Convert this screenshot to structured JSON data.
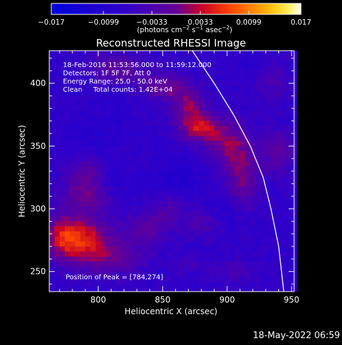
{
  "chart_data": {
    "type": "heatmap",
    "title": "Reconstructed RHESSI Image",
    "xlabel": "Heliocentric X (arcsec)",
    "ylabel": "Heliocentric Y (arcsec)",
    "xlim": [
      762,
      952
    ],
    "ylim": [
      234,
      426
    ],
    "xticks": [
      800,
      850,
      900,
      950
    ],
    "yticks": [
      250,
      300,
      350,
      400
    ],
    "colorbar": {
      "range": [
        -0.017,
        0.017
      ],
      "tick_values": [
        -0.017,
        -0.0099,
        -0.0033,
        0.0033,
        0.0099,
        0.017
      ],
      "tick_labels": [
        "−0.017",
        "−0.0099",
        "−0.0033",
        "0.0033",
        "0.0099",
        "0.017"
      ],
      "units_main": "(photons cm",
      "units_exp1": "−2",
      "units_mid": " s",
      "units_exp2": "−1",
      "units_end": " asec",
      "units_exp3": "−2",
      "units_close": ")"
    },
    "annotations": [
      "18-Feb-2016 11:53:56.000 to 11:59:12.000",
      "Detectors: 1F 5F 7F, Att 0",
      "Energy Range: 25.0 - 50.0 keV",
      "Clean     Total counts: 1.42E+04"
    ],
    "peak_label": "Position of Peak = [784,274]",
    "peak": [
      784,
      274
    ],
    "limb_curve": [
      [
        873,
        426
      ],
      [
        890,
        400
      ],
      [
        905,
        375
      ],
      [
        918,
        350
      ],
      [
        928,
        325
      ],
      [
        934,
        300
      ],
      [
        940,
        270
      ],
      [
        944,
        234
      ]
    ],
    "sources": [
      {
        "x": 878,
        "y": 365,
        "sx": 11,
        "sy": 8,
        "amp": 0.0115
      },
      {
        "x": 870,
        "y": 383,
        "sx": 9,
        "sy": 8,
        "amp": 0.0075
      },
      {
        "x": 853,
        "y": 397,
        "sx": 14,
        "sy": 7,
        "amp": 0.0075
      },
      {
        "x": 815,
        "y": 412,
        "sx": 16,
        "sy": 8,
        "amp": 0.0065
      },
      {
        "x": 900,
        "y": 352,
        "sx": 11,
        "sy": 13,
        "amp": 0.0075
      },
      {
        "x": 912,
        "y": 326,
        "sx": 9,
        "sy": 18,
        "amp": 0.0072
      },
      {
        "x": 940,
        "y": 345,
        "sx": 9,
        "sy": 12,
        "amp": 0.006
      },
      {
        "x": 786,
        "y": 276,
        "sx": 15,
        "sy": 13,
        "amp": 0.012
      },
      {
        "x": 770,
        "y": 278,
        "sx": 8,
        "sy": 12,
        "amp": 0.006
      },
      {
        "x": 812,
        "y": 262,
        "sx": 18,
        "sy": 11,
        "amp": 0.006
      },
      {
        "x": 792,
        "y": 312,
        "sx": 15,
        "sy": 10,
        "amp": 0.007
      },
      {
        "x": 790,
        "y": 330,
        "sx": 9,
        "sy": 8,
        "amp": 0.0045
      },
      {
        "x": 838,
        "y": 285,
        "sx": 11,
        "sy": 8,
        "amp": 0.0055
      },
      {
        "x": 855,
        "y": 300,
        "sx": 9,
        "sy": 9,
        "amp": 0.004
      },
      {
        "x": 880,
        "y": 288,
        "sx": 11,
        "sy": 8,
        "amp": 0.0038
      },
      {
        "x": 935,
        "y": 400,
        "sx": 9,
        "sy": 13,
        "amp": 0.0035
      },
      {
        "x": 905,
        "y": 250,
        "sx": 12,
        "sy": 7,
        "amp": 0.003
      },
      {
        "x": 870,
        "y": 255,
        "sx": 8,
        "sy": 6,
        "amp": 0.0025
      },
      {
        "x": 815,
        "y": 375,
        "sx": 7,
        "sy": 11,
        "amp": -0.0015
      },
      {
        "x": 812,
        "y": 318,
        "sx": 11,
        "sy": 8,
        "amp": -0.003
      },
      {
        "x": 860,
        "y": 325,
        "sx": 13,
        "sy": 12,
        "amp": -0.0025
      },
      {
        "x": 900,
        "y": 295,
        "sx": 9,
        "sy": 9,
        "amp": -0.002
      },
      {
        "x": 790,
        "y": 360,
        "sx": 10,
        "sy": 10,
        "amp": -0.002
      },
      {
        "x": 920,
        "y": 415,
        "sx": 9,
        "sy": 7,
        "amp": -0.0015
      }
    ]
  },
  "footer": {
    "timestamp": "18-May-2022 06:59"
  }
}
